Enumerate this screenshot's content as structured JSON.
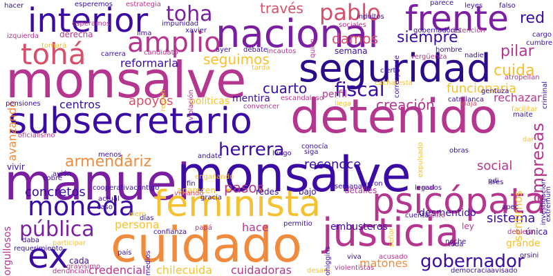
{
  "palette": {
    "indigo": "#3a0ca3",
    "violet": "#7b1fa2",
    "magenta": "#b5368f",
    "rose": "#d94f6b",
    "orange": "#f08a3c",
    "gold": "#f6c12f",
    "deep": "#2c0a8c"
  },
  "words": [
    {
      "text": "manuel",
      "c": "violet"
    },
    {
      "text": "monsalve",
      "c": "indigo"
    },
    {
      "text": "monsalve",
      "c": "magenta"
    },
    {
      "text": "detenido",
      "c": "magenta"
    },
    {
      "text": "cuidado",
      "c": "orange"
    },
    {
      "text": "nacional",
      "c": "violet"
    },
    {
      "text": "seguridad",
      "c": "deep"
    },
    {
      "text": "subsecretario",
      "c": "indigo"
    },
    {
      "text": "feminista",
      "c": "gold"
    },
    {
      "text": "justicia",
      "c": "magenta"
    },
    {
      "text": "psicópata",
      "c": "magenta"
    },
    {
      "text": "frente",
      "c": "violet"
    },
    {
      "text": "interior",
      "c": "indigo"
    },
    {
      "text": "tohá",
      "c": "rose"
    },
    {
      "text": "amplio",
      "c": "magenta"
    },
    {
      "text": "moneda",
      "c": "indigo"
    },
    {
      "text": "ex",
      "c": "indigo"
    },
    {
      "text": "pablo",
      "c": "rose"
    },
    {
      "text": "toha",
      "c": "violet"
    },
    {
      "text": "gobernador",
      "c": "indigo"
    },
    {
      "text": "pública",
      "c": "violet"
    },
    {
      "text": "herrera",
      "c": "indigo"
    },
    {
      "text": "armendáriz",
      "c": "orange"
    },
    {
      "text": "fiscal",
      "c": "indigo"
    },
    {
      "text": "cuarto",
      "c": "indigo"
    },
    {
      "text": "cuida",
      "c": "gold"
    },
    {
      "text": "pilar",
      "c": "magenta"
    },
    {
      "text": "red",
      "c": "indigo"
    },
    {
      "text": "través",
      "c": "rose"
    },
    {
      "text": "damos",
      "c": "rose"
    },
    {
      "text": "siempre",
      "c": "indigo"
    },
    {
      "text": "empresas",
      "c": "magenta"
    },
    {
      "text": "funcionaria",
      "c": "gold"
    },
    {
      "text": "seguimos",
      "c": "gold"
    },
    {
      "text": "reformarla",
      "c": "indigo"
    },
    {
      "text": "creación",
      "c": "magenta"
    },
    {
      "text": "concretos",
      "c": "indigo"
    },
    {
      "text": "pasos",
      "c": "magenta"
    },
    {
      "text": "reconoce",
      "c": "indigo"
    },
    {
      "text": "social",
      "c": "magenta"
    },
    {
      "text": "sistema",
      "c": "indigo"
    },
    {
      "text": "chilecuida",
      "c": "gold"
    },
    {
      "text": "cuidadoras",
      "c": "magenta"
    },
    {
      "text": "credencial",
      "c": "magenta"
    },
    {
      "text": "matones",
      "c": "orange"
    },
    {
      "text": "persona",
      "c": "gold"
    },
    {
      "text": "hace",
      "c": "magenta"
    },
    {
      "text": "apoyos",
      "c": "rose"
    },
    {
      "text": "centros",
      "c": "indigo"
    },
    {
      "text": "mentira",
      "c": "indigo"
    },
    {
      "text": "políticas",
      "c": "gold"
    },
    {
      "text": "perfil",
      "c": "magenta"
    },
    {
      "text": "rechazar",
      "c": "magenta"
    },
    {
      "text": "avanzando",
      "c": "orange"
    },
    {
      "text": "embusteros",
      "c": "indigo"
    },
    {
      "text": "desmentido",
      "c": "indigo"
    },
    {
      "text": "grande",
      "c": "gold"
    },
    {
      "text": "única",
      "c": "indigo"
    },
    {
      "text": "orgullosos",
      "c": "magenta"
    },
    {
      "text": "derecha",
      "c": "magenta"
    },
    {
      "text": "semana",
      "c": "indigo"
    },
    {
      "text": "aparecen",
      "c": "gold"
    },
    {
      "text": "redes",
      "c": "indigo"
    },
    {
      "text": "bajo",
      "c": "indigo"
    },
    {
      "text": "detalles",
      "c": "magenta"
    },
    {
      "text": "cada",
      "c": "indigo"
    },
    {
      "text": "sentirnos",
      "c": "gold"
    },
    {
      "text": "ley",
      "c": "magenta"
    },
    {
      "text": "vivir",
      "c": "indigo"
    },
    {
      "text": "hacer",
      "c": "indigo"
    },
    {
      "text": "esperamos",
      "c": "magenta"
    },
    {
      "text": "estrategia",
      "c": "magenta"
    },
    {
      "text": "parece",
      "c": "indigo"
    },
    {
      "text": "falso",
      "c": "indigo"
    },
    {
      "text": "lima",
      "c": "indigo"
    },
    {
      "text": "incautos",
      "c": "magenta"
    },
    {
      "text": "detención",
      "c": "magenta"
    },
    {
      "text": "atropellan",
      "c": "magenta"
    },
    {
      "text": "carrera",
      "c": "indigo"
    },
    {
      "text": "ayer",
      "c": "indigo"
    },
    {
      "text": "debate",
      "c": "indigo"
    },
    {
      "text": "cierto",
      "c": "indigo"
    },
    {
      "text": "convencer",
      "c": "magenta"
    },
    {
      "text": "llega",
      "c": "gold"
    },
    {
      "text": "viaja",
      "c": "rose"
    },
    {
      "text": "permitio",
      "c": "indigo"
    },
    {
      "text": "engañando",
      "c": "gold"
    },
    {
      "text": "violando",
      "c": "rose"
    },
    {
      "text": "gracia",
      "c": "indigo"
    },
    {
      "text": "alero",
      "c": "gold"
    },
    {
      "text": "dieron",
      "c": "indigo"
    },
    {
      "text": "acusado",
      "c": "magenta"
    },
    {
      "text": "viva",
      "c": "indigo"
    },
    {
      "text": "violentistas",
      "c": "magenta"
    },
    {
      "text": "desam",
      "c": "gold"
    },
    {
      "text": "democracia",
      "c": "indigo"
    },
    {
      "text": "avisado",
      "c": "indigo"
    },
    {
      "text": "días",
      "c": "indigo"
    },
    {
      "text": "papá",
      "c": "magenta"
    },
    {
      "text": "medios",
      "c": "indigo"
    },
    {
      "text": "denuncian",
      "c": "magenta"
    },
    {
      "text": "gravísimo",
      "c": "magenta"
    },
    {
      "text": "pensiones",
      "c": "indigo"
    },
    {
      "text": "oficialismo",
      "c": "magenta"
    },
    {
      "text": "cobre",
      "c": "indigo"
    },
    {
      "text": "menos",
      "c": "indigo"
    },
    {
      "text": "luego",
      "c": "indigo"
    },
    {
      "text": "siga",
      "c": "indigo"
    },
    {
      "text": "obras",
      "c": "indigo"
    },
    {
      "text": "andate",
      "c": "indigo"
    },
    {
      "text": "sres",
      "c": "indigo"
    },
    {
      "text": "real",
      "c": "magenta"
    },
    {
      "text": "fin",
      "c": "indigo"
    },
    {
      "text": "caso",
      "c": "indigo"
    },
    {
      "text": "actual",
      "c": "indigo"
    },
    {
      "text": "legados",
      "c": "indigo"
    },
    {
      "text": "delito",
      "c": "magenta"
    },
    {
      "text": "noche",
      "c": "indigo"
    },
    {
      "text": "toda",
      "c": "indigo"
    },
    {
      "text": "orsini",
      "c": "indigo"
    },
    {
      "text": "apec",
      "c": "indigo"
    },
    {
      "text": "participar",
      "c": "gold"
    },
    {
      "text": "requerimiento",
      "c": "indigo"
    },
    {
      "text": "semana",
      "c": "indigo"
    },
    {
      "text": "confianza",
      "c": "indigo"
    },
    {
      "text": "país",
      "c": "indigo"
    },
    {
      "text": "cargo",
      "c": "indigo"
    },
    {
      "text": "cumbre",
      "c": "indigo"
    },
    {
      "text": "nadie",
      "c": "indigo"
    },
    {
      "text": "hombre",
      "c": "indigo"
    },
    {
      "text": "tarda",
      "c": "gold"
    },
    {
      "text": "impunidad",
      "c": "indigo"
    },
    {
      "text": "xavier",
      "c": "indigo"
    },
    {
      "text": "indultos",
      "c": "indigo"
    },
    {
      "text": "sociales",
      "c": "magenta"
    },
    {
      "text": "gobernadores",
      "c": "indigo"
    },
    {
      "text": "izquierda",
      "c": "magenta"
    },
    {
      "text": "esperemos",
      "c": "indigo"
    },
    {
      "text": "tomará",
      "c": "gold"
    },
    {
      "text": "candidato",
      "c": "magenta"
    },
    {
      "text": "violación",
      "c": "magenta"
    },
    {
      "text": "región",
      "c": "gold"
    },
    {
      "text": "cooperativacontigo",
      "c": "indigo"
    },
    {
      "text": "vergüenza",
      "c": "magenta"
    },
    {
      "text": "investigación",
      "c": "indigo"
    },
    {
      "text": "extremum",
      "c": "indigo"
    },
    {
      "text": "catrillanca",
      "c": "indigo"
    },
    {
      "text": "cachatesta",
      "c": "gold"
    },
    {
      "text": "leyes",
      "c": "indigo"
    },
    {
      "text": "corresponde",
      "c": "indigo"
    },
    {
      "text": "quién",
      "c": "magenta"
    },
    {
      "text": "gentuza",
      "c": "indigo"
    },
    {
      "text": "facilitar",
      "c": "gold"
    },
    {
      "text": "maite",
      "c": "indigo"
    },
    {
      "text": "conocía",
      "c": "indigo"
    },
    {
      "text": "expulsado",
      "c": "gold"
    },
    {
      "text": "pdi",
      "c": "indigo"
    },
    {
      "text": "escandaloso",
      "c": "magenta"
    },
    {
      "text": "criminal",
      "c": "indigo"
    },
    {
      "text": "ohiggins",
      "c": "indigo"
    },
    {
      "text": "cuenta",
      "c": "indigo"
    },
    {
      "text": "señor",
      "c": "gold"
    },
    {
      "text": "dar",
      "c": "gold"
    },
    {
      "text": "avión",
      "c": "indigo"
    },
    {
      "text": "daba",
      "c": "indigo"
    },
    {
      "text": "debiera",
      "c": "magenta"
    }
  ]
}
